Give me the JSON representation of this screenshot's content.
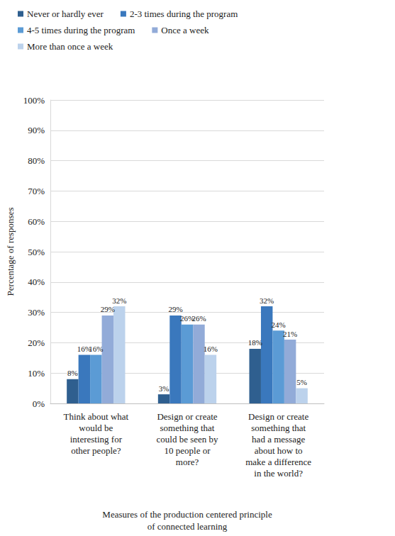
{
  "chart_data": {
    "type": "bar",
    "x_label": "Measures of the production centered principle\nof connected learning",
    "y_label": "Percentage of responses",
    "categories": [
      "Think about what\nwould be\ninteresting for\nother people?",
      "Design or create\nsomething that\ncould be seen by\n10 people or\nmore?",
      "Design or create\nsomething that\nhad a message\nabout how to\nmake a difference\nin the world?"
    ],
    "series": [
      {
        "name": "Never or hardly ever",
        "color": "#2f5f8f",
        "values": [
          8,
          3,
          18
        ],
        "value_labels": [
          "8%",
          "3%",
          "18%"
        ]
      },
      {
        "name": "2-3 times during the program",
        "color": "#3a78bd",
        "values": [
          16,
          29,
          32
        ],
        "value_labels": [
          "16%",
          "29%",
          "32%"
        ]
      },
      {
        "name": "4-5 times during the program",
        "color": "#5b9bd5",
        "values": [
          16,
          26,
          24
        ],
        "value_labels": [
          "16%",
          "26%",
          "24%"
        ]
      },
      {
        "name": "Once a week",
        "color": "#92abd8",
        "values": [
          29,
          26,
          21
        ],
        "value_labels": [
          "29%",
          "26%",
          "21%"
        ]
      },
      {
        "name": "More than once a week",
        "color": "#bcd2ec",
        "values": [
          32,
          16,
          5
        ],
        "value_labels": [
          "32%",
          "16%",
          "5%"
        ]
      }
    ],
    "ylim": [
      0,
      100
    ],
    "yticks": [
      {
        "value": 0,
        "label": "0%"
      },
      {
        "value": 10,
        "label": "10%"
      },
      {
        "value": 20,
        "label": "20%"
      },
      {
        "value": 30,
        "label": "30%"
      },
      {
        "value": 40,
        "label": "40%"
      },
      {
        "value": 50,
        "label": "50%"
      },
      {
        "value": 60,
        "label": "60%"
      },
      {
        "value": 70,
        "label": "70%"
      },
      {
        "value": 80,
        "label": "80%"
      },
      {
        "value": 90,
        "label": "90%"
      },
      {
        "value": 100,
        "label": "100%"
      }
    ],
    "grid": true,
    "legend": "upper left",
    "data_labels": true
  }
}
